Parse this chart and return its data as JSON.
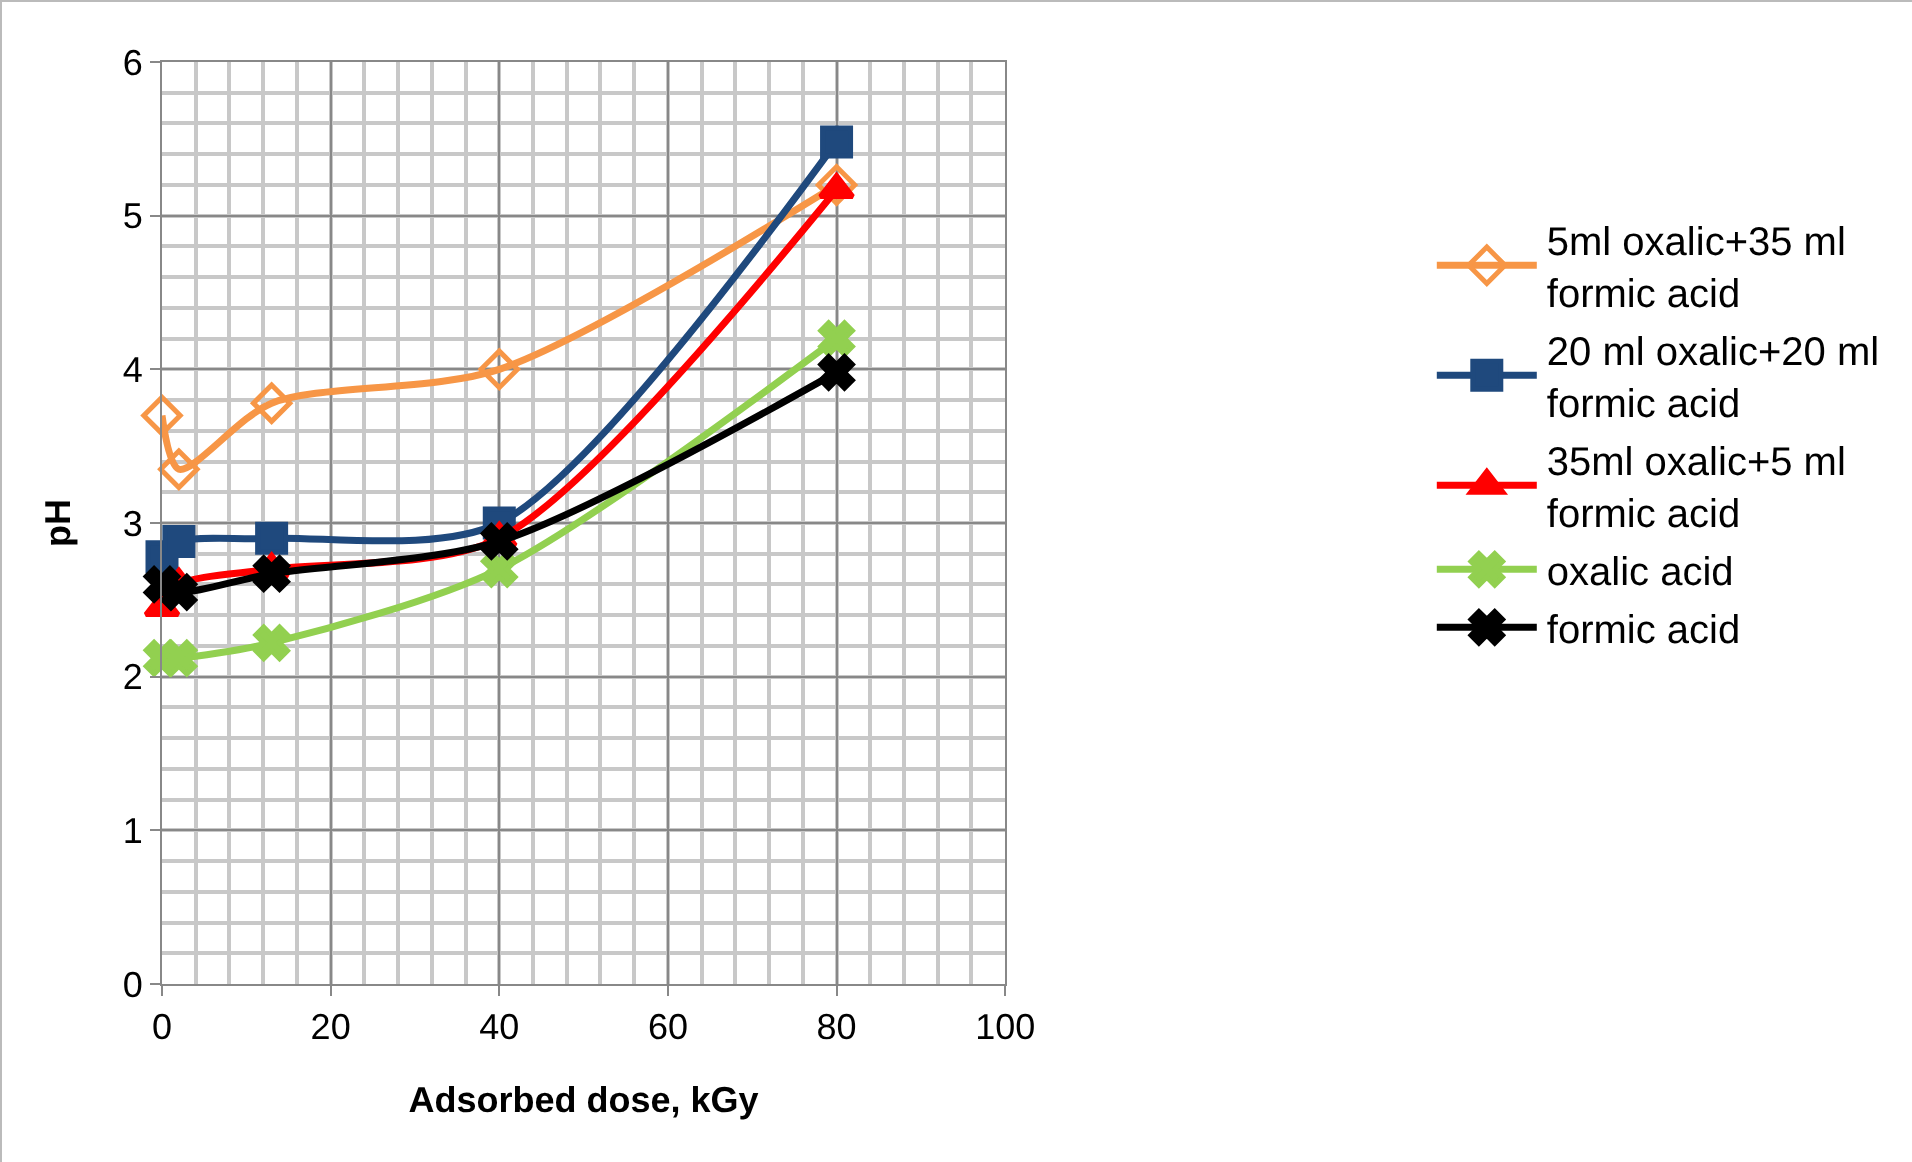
{
  "chart_data": {
    "type": "line",
    "xlabel": "Adsorbed dose, kGy",
    "ylabel": "pH",
    "x": [
      0,
      2,
      13,
      40,
      80
    ],
    "series": [
      {
        "name": "5ml oxalic+35 ml formic acid",
        "color": "#f79646",
        "marker": "diamond",
        "values": [
          3.7,
          3.35,
          3.78,
          4.0,
          5.2
        ]
      },
      {
        "name": "20 ml oxalic+20 ml formic acid",
        "color": "#1f497d",
        "marker": "square",
        "values": [
          2.78,
          2.88,
          2.9,
          3.0,
          5.48
        ]
      },
      {
        "name": "35ml oxalic+5 ml formic acid",
        "color": "#ff0000",
        "marker": "triangle",
        "values": [
          2.45,
          2.6,
          2.7,
          2.9,
          5.17
        ]
      },
      {
        "name": "oxalic acid",
        "color": "#92d050",
        "marker": "cross",
        "values": [
          2.12,
          2.12,
          2.22,
          2.7,
          4.2
        ]
      },
      {
        "name": "formic acid",
        "color": "#000000",
        "marker": "cross",
        "values": [
          2.6,
          2.55,
          2.67,
          2.88,
          3.98
        ]
      }
    ],
    "xlim": [
      0,
      100
    ],
    "xticks": [
      0,
      20,
      40,
      60,
      80,
      100
    ],
    "ylim": [
      0,
      6
    ],
    "yticks": [
      0,
      1,
      2,
      3,
      4,
      5,
      6
    ],
    "grid": true,
    "legend": "right",
    "line_style": "solid"
  }
}
